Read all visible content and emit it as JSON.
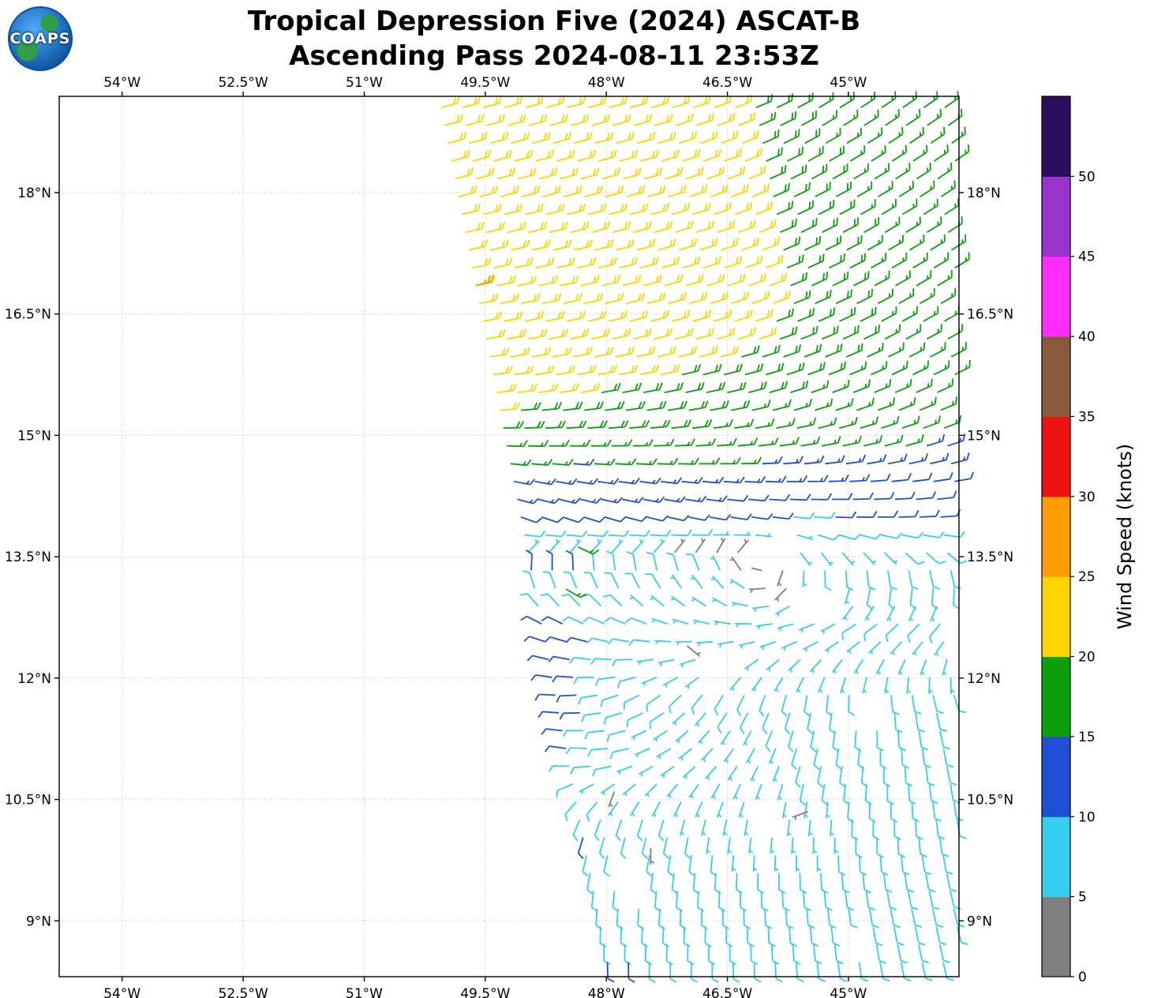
{
  "logo": {
    "text": "COAPS"
  },
  "title": {
    "line1": "Tropical Depression Five (2024) ASCAT-B",
    "line2": "Ascending Pass 2024-08-11 23:53Z"
  },
  "chart_data": {
    "type": "wind-barb-map",
    "title": "Tropical Depression Five (2024) ASCAT-B",
    "subtitle": "Ascending Pass 2024-08-11 23:53Z",
    "x_axis": {
      "range": [
        -54.78,
        -43.63
      ],
      "grid": true,
      "ticks": [
        {
          "value": -54,
          "label": "54°W"
        },
        {
          "value": -52.5,
          "label": "52.5°W"
        },
        {
          "value": -51,
          "label": "51°W"
        },
        {
          "value": -49.5,
          "label": "49.5°W"
        },
        {
          "value": -48,
          "label": "48°W"
        },
        {
          "value": -46.5,
          "label": "46.5°W"
        },
        {
          "value": -45,
          "label": "45°W"
        }
      ]
    },
    "y_axis": {
      "range": [
        8.31,
        19.19
      ],
      "grid": true,
      "ticks": [
        {
          "value": 18,
          "label": "18°N"
        },
        {
          "value": 16.5,
          "label": "16.5°N"
        },
        {
          "value": 15,
          "label": "15°N"
        },
        {
          "value": 13.5,
          "label": "13.5°N"
        },
        {
          "value": 12,
          "label": "12°N"
        },
        {
          "value": 10.5,
          "label": "10.5°N"
        },
        {
          "value": 9,
          "label": "9°N"
        }
      ]
    },
    "colorbar": {
      "label": "Wind Speed (knots)",
      "bin_size": 5,
      "tick_labels": [
        "0",
        "5",
        "10",
        "15",
        "20",
        "25",
        "30",
        "35",
        "40",
        "45",
        "50"
      ],
      "colors": [
        "#7f7f7f",
        "#35cdf0",
        "#1e4fd6",
        "#0ba00b",
        "#ffd400",
        "#ff9c00",
        "#ee1111",
        "#8a5a3a",
        "#ff2bff",
        "#9933cc",
        "#2b0f5e"
      ]
    },
    "wind_field": {
      "units": "knots",
      "control_lats": [
        19.2,
        18.2,
        17.2,
        16.2,
        15.4,
        14.9,
        14.4,
        13.9,
        13.3,
        12.6,
        11.8,
        11.0,
        10.2,
        9.3,
        8.4
      ],
      "control_lons": [
        -50.5,
        -49.5,
        -48.5,
        -47.5,
        -46.5,
        -45.5,
        -44.5,
        -43.5
      ],
      "speed_knots": [
        [
          22,
          22,
          22,
          22,
          21,
          17,
          17,
          16
        ],
        [
          22,
          22,
          22,
          22,
          22,
          18,
          17,
          16
        ],
        [
          23,
          22,
          22,
          22,
          22,
          19,
          17,
          17
        ],
        [
          22,
          22,
          22,
          22,
          21,
          19,
          17,
          17
        ],
        [
          21,
          21,
          20,
          19,
          18,
          17,
          17,
          16
        ],
        [
          19,
          18,
          17,
          17,
          17,
          16,
          16,
          14
        ],
        [
          14,
          13,
          13,
          14,
          14,
          13,
          12,
          12
        ],
        [
          13,
          12,
          12,
          12,
          10,
          9,
          12,
          12
        ],
        [
          12,
          12,
          11,
          9,
          8,
          8,
          9,
          9
        ],
        [
          12,
          12,
          11,
          8,
          7,
          8,
          8,
          8
        ],
        [
          11,
          10,
          11,
          8,
          8,
          8,
          8,
          8
        ],
        [
          11,
          12,
          10,
          7,
          7,
          8,
          8,
          8
        ],
        [
          10,
          10,
          11,
          8,
          7,
          7,
          8,
          8
        ],
        [
          8,
          8,
          9,
          8,
          8,
          8,
          8,
          9
        ],
        [
          8,
          9,
          11,
          10,
          8,
          8,
          9,
          10
        ]
      ],
      "direction_from_deg": [
        [
          75,
          75,
          75,
          75,
          70,
          60,
          55,
          55
        ],
        [
          75,
          75,
          75,
          75,
          70,
          62,
          58,
          55
        ],
        [
          78,
          78,
          78,
          75,
          72,
          65,
          60,
          58
        ],
        [
          80,
          80,
          78,
          76,
          74,
          68,
          62,
          60
        ],
        [
          85,
          85,
          82,
          80,
          78,
          72,
          68,
          65
        ],
        [
          95,
          92,
          90,
          88,
          85,
          80,
          75,
          70
        ],
        [
          105,
          102,
          100,
          98,
          95,
          90,
          85,
          80
        ],
        [
          115,
          112,
          110,
          105,
          100,
          95,
          90,
          85
        ],
        [
          15,
          5,
          355,
          345,
          330,
          185,
          175,
          170
        ],
        [
          295,
          295,
          290,
          285,
          275,
          255,
          235,
          220
        ],
        [
          300,
          290,
          270,
          240,
          210,
          190,
          175,
          160
        ],
        [
          310,
          300,
          280,
          250,
          220,
          195,
          180,
          165
        ],
        [
          200,
          200,
          200,
          195,
          190,
          185,
          180,
          170
        ],
        [
          180,
          180,
          185,
          185,
          180,
          175,
          170,
          165
        ],
        [
          170,
          170,
          175,
          180,
          180,
          175,
          170,
          165
        ]
      ],
      "swath": {
        "ref_lat": 8.3,
        "left_edge_lon_at_ref": -48.05,
        "left_edge_slope_lon_per_lat": -0.195,
        "right_edge_lon": -43.65
      },
      "barb_grid": {
        "lat_start": 19.05,
        "lat_end": 8.45,
        "lat_step": 0.22,
        "lon_step": 0.26,
        "lon_inset": 0.1
      },
      "data_gaps": [
        {
          "lon": -45.9,
          "lat": 13.6,
          "r": 0.27
        },
        {
          "lon": -45.3,
          "lat": 12.95,
          "r": 0.3
        },
        {
          "lon": -46.55,
          "lat": 12.2,
          "r": 0.22
        },
        {
          "lon": -44.7,
          "lat": 11.6,
          "r": 0.25
        },
        {
          "lon": -47.7,
          "lat": 9.6,
          "r": 0.27
        },
        {
          "lon": -46.05,
          "lat": 10.45,
          "r": 0.22
        },
        {
          "lon": -44.9,
          "lat": 8.75,
          "r": 0.25
        }
      ],
      "outlier_barbs": [
        {
          "lon": -49.62,
          "lat": 16.85,
          "speed": 27,
          "dir": 75
        },
        {
          "lon": -48.35,
          "lat": 13.62,
          "speed": 17,
          "dir": 115
        },
        {
          "lon": -48.5,
          "lat": 13.1,
          "speed": 16,
          "dir": 120
        },
        {
          "lon": -47.0,
          "lat": 12.4,
          "speed": 3,
          "dir": 130
        },
        {
          "lon": -47.9,
          "lat": 10.6,
          "speed": 3,
          "dir": 200
        },
        {
          "lon": -45.5,
          "lat": 10.35,
          "speed": 3,
          "dir": 250
        },
        {
          "lon": -47.45,
          "lat": 9.9,
          "speed": 3,
          "dir": 180
        }
      ]
    }
  }
}
